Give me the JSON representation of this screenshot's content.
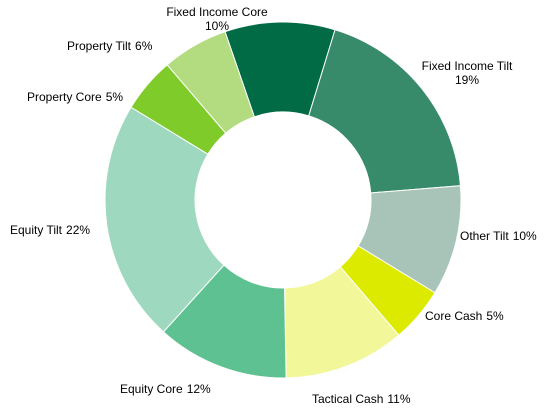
{
  "chart_data": {
    "type": "donut",
    "categories": [
      "Fixed Income Core",
      "Fixed Income Tilt",
      "Other Tilt",
      "Core Cash",
      "Tactical Cash",
      "Equity Core",
      "Equity Tilt",
      "Property Core",
      "Property Tilt"
    ],
    "values": [
      10,
      19,
      10,
      5,
      11,
      12,
      22,
      5,
      6
    ],
    "value_labels": [
      "10%",
      "19%",
      "10%",
      "5%",
      "11%",
      "12%",
      "22%",
      "5%",
      "6%"
    ],
    "colors": [
      "#006b45",
      "#378a6a",
      "#a8c4b8",
      "#dcea00",
      "#f2f79a",
      "#5ec191",
      "#9ed9bf",
      "#7fcb2a",
      "#b3dc80"
    ]
  }
}
